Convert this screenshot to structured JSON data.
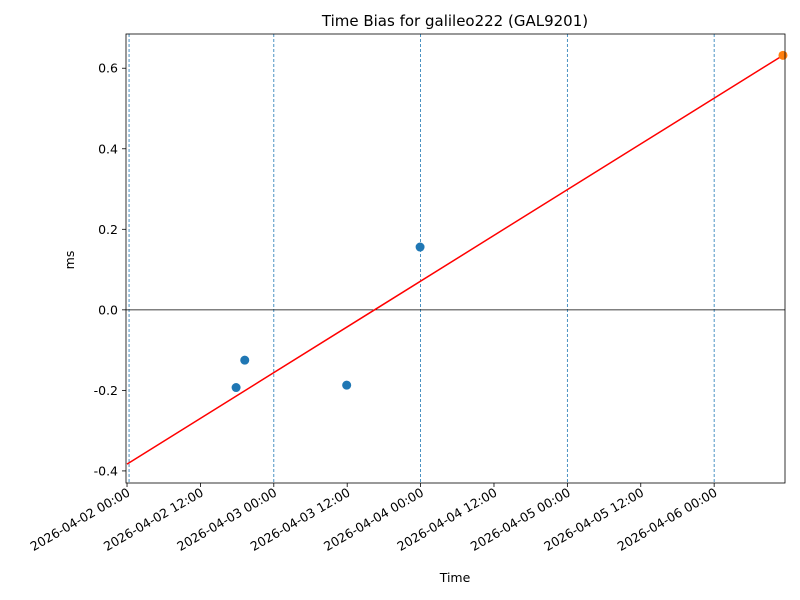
{
  "chart_data": {
    "type": "scatter",
    "title": "Time Bias for galileo222 (GAL9201)",
    "xlabel": "Time",
    "ylabel": "ms",
    "x_tick_labels": [
      "2026-04-02 00:00",
      "2026-04-02 12:00",
      "2026-04-03 00:00",
      "2026-04-03 12:00",
      "2026-04-04 00:00",
      "2026-04-04 12:00",
      "2026-04-05 00:00",
      "2026-04-05 12:00",
      "2026-04-06 00:00"
    ],
    "y_tick_labels": [
      "-0.4",
      "-0.2",
      "0.0",
      "0.2",
      "0.4",
      "0.6"
    ],
    "xlim": [
      "2026-04-01 23:50",
      "2026-04-06 11:35"
    ],
    "ylim": [
      -0.43,
      0.685
    ],
    "y_ticks": [
      -0.4,
      -0.2,
      0.0,
      0.2,
      0.4,
      0.6
    ],
    "vertical_reference_lines": [
      "2026-04-02 00:20",
      "2026-04-03 00:00",
      "2026-04-04 00:00",
      "2026-04-05 00:00",
      "2026-04-06 00:00"
    ],
    "horizontal_reference_line": 0.0,
    "series": [
      {
        "kind": "points",
        "color": "#1f77b4",
        "points": [
          {
            "x": "2026-04-02 17:50",
            "y": -0.193
          },
          {
            "x": "2026-04-02 19:15",
            "y": -0.125
          },
          {
            "x": "2026-04-03 11:55",
            "y": -0.187
          },
          {
            "x": "2026-04-03 23:55",
            "y": 0.156
          }
        ]
      },
      {
        "kind": "line",
        "color": "#ff0000",
        "points": [
          {
            "x": "2026-04-02 00:00",
            "y": -0.383
          },
          {
            "x": "2026-04-06 11:15",
            "y": 0.632
          }
        ]
      },
      {
        "kind": "points",
        "color": "#ff7f0e",
        "points": [
          {
            "x": "2026-04-06 11:15",
            "y": 0.632
          }
        ]
      }
    ],
    "grid": false
  }
}
